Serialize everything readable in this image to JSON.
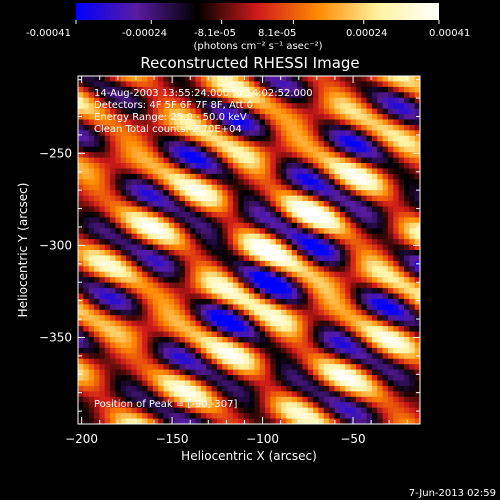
{
  "colorbar": {
    "ticks": [
      "-0.00041",
      "-0.00024",
      "-8.1e-05",
      "8.1e-05",
      "0.00024",
      "0.00041"
    ],
    "tick_values": [
      -0.00041,
      -0.00024,
      -8.1e-05,
      8.1e-05,
      0.00024,
      0.00041
    ],
    "range": [
      -0.00041,
      0.00041
    ],
    "unit_label": "(photons cm⁻² s⁻¹ asec⁻²)",
    "colors": [
      "#0000ff",
      "#5a1ca0",
      "#000000",
      "#d01a1a",
      "#ff8a00",
      "#fff3a0",
      "#ffffff"
    ]
  },
  "overlay": {
    "line1": "14-Aug-2003 13:55:24.000 to 14:02:52.000",
    "line2": "Detectors: 4F 5F 6F 7F 8F, Att 0",
    "line3": "Energy Range: 25.0 - 50.0 keV",
    "line4": "Clean     Total counts: 2.70E+04",
    "peak": "Position of Peak = [-90,-307]"
  },
  "footer": {
    "timestamp": "7-Jun-2013 02:59"
  },
  "chart_data": {
    "type": "heatmap",
    "title": "Reconstructed RHESSI Image",
    "xlabel": "Heliocentric X (arcsec)",
    "ylabel": "Heliocentric Y (arcsec)",
    "xlim": [
      -202,
      -13
    ],
    "ylim": [
      -397,
      -208
    ],
    "x_ticks": [
      -200,
      -150,
      -100,
      -50
    ],
    "x_tick_labels": [
      "−200",
      "−150",
      "−100",
      "−50"
    ],
    "y_ticks": [
      -250,
      -300,
      -350
    ],
    "y_tick_labels": [
      "−250",
      "−300",
      "−350"
    ],
    "peak_position": [
      -90,
      -307
    ],
    "peak_value": 0.00041,
    "pattern": "diagonal bright/dark fringes running from upper-left to lower-right, brightest near the peak"
  }
}
